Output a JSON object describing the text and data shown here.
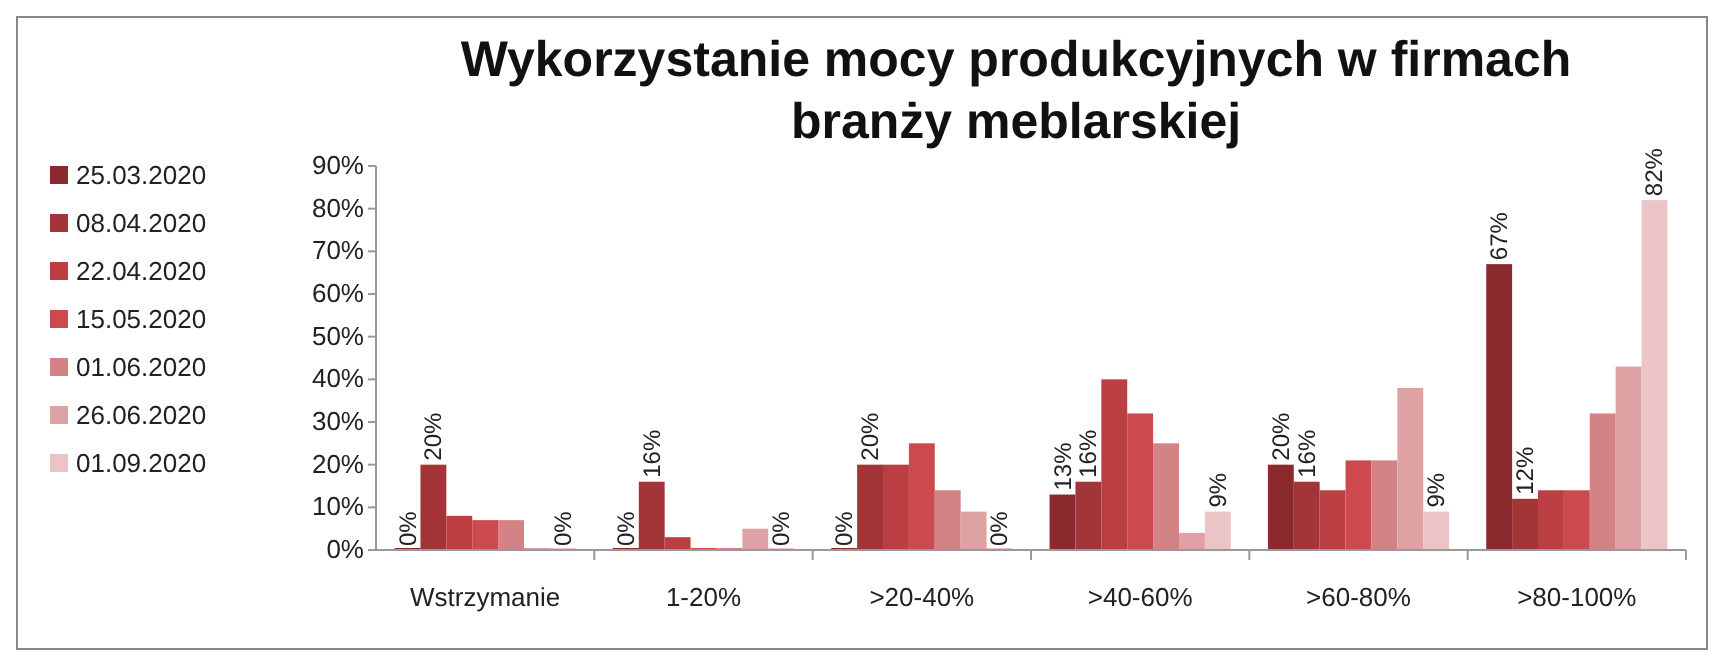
{
  "chart_data": {
    "type": "bar",
    "title": "Wykorzystanie mocy produkcyjnych w firmach branży meblarskiej",
    "categories": [
      "Wstrzymanie",
      "1-20%",
      ">20-40%",
      ">40-60%",
      ">60-80%",
      ">80-100%"
    ],
    "series": [
      {
        "name": "25.03.2020",
        "color": "#8b2a2e",
        "values": [
          0,
          0,
          0,
          13,
          20,
          67
        ],
        "value_labels": [
          "0%",
          "0%",
          "0%",
          "13%",
          "20%",
          "67%"
        ]
      },
      {
        "name": "08.04.2020",
        "color": "#a33538",
        "values": [
          20,
          16,
          20,
          16,
          16,
          12
        ],
        "value_labels": [
          "20%",
          "16%",
          "20%",
          "16%",
          "16%",
          "12%"
        ]
      },
      {
        "name": "22.04.2020",
        "color": "#bb3f42",
        "values": [
          8,
          3,
          20,
          40,
          14,
          14
        ]
      },
      {
        "name": "15.05.2020",
        "color": "#cc4a4e",
        "values": [
          7,
          0,
          25,
          32,
          21,
          14
        ]
      },
      {
        "name": "01.06.2020",
        "color": "#d38385",
        "values": [
          7,
          0,
          14,
          25,
          21,
          32
        ]
      },
      {
        "name": "26.06.2020",
        "color": "#dea2a4",
        "values": [
          0,
          5,
          9,
          4,
          38,
          43
        ]
      },
      {
        "name": "01.09.2020",
        "color": "#ebc4c5",
        "values": [
          0,
          0,
          0,
          9,
          9,
          82
        ],
        "value_labels": [
          "0%",
          "0%",
          "0%",
          "9%",
          "9%",
          "82%"
        ]
      }
    ],
    "ylim": [
      0,
      90
    ],
    "yticks": [
      {
        "value": 0,
        "label": "0%"
      },
      {
        "value": 10,
        "label": "10%"
      },
      {
        "value": 20,
        "label": "20%"
      },
      {
        "value": 30,
        "label": "30%"
      },
      {
        "value": 40,
        "label": "40%"
      },
      {
        "value": 50,
        "label": "50%"
      },
      {
        "value": 60,
        "label": "60%"
      },
      {
        "value": 70,
        "label": "70%"
      },
      {
        "value": 80,
        "label": "80%"
      },
      {
        "value": 90,
        "label": "90%"
      }
    ],
    "legend": "left"
  }
}
